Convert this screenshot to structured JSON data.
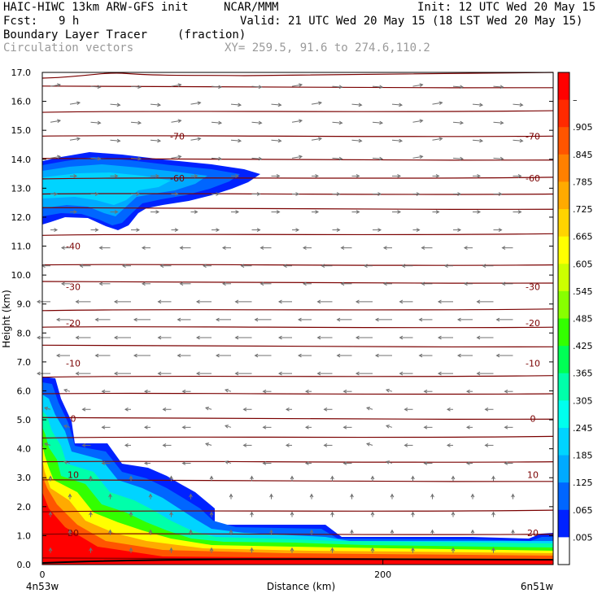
{
  "header": {
    "model": "HAIC-HIWC 13km ARW-GFS init",
    "org": "NCAR/MMM",
    "init": "Init: 12 UTC Wed 20 May 15",
    "fcst_label": "Fcst:",
    "fcst_value": "9 h",
    "valid": "Valid: 21 UTC Wed 20 May 15 (18 LST Wed 20 May 15)",
    "field1": "Boundary Layer Tracer",
    "field1_units": "(fraction)",
    "field2": "Circulation vectors",
    "xy": "XY= 259.5, 91.6 to 274.6,110.2"
  },
  "chart_data": {
    "type": "heatmap",
    "title": "Boundary Layer Tracer (fraction)",
    "xlabel": "Distance (km)",
    "ylabel": "Height (km)",
    "xlim": [
      0,
      300
    ],
    "ylim": [
      0,
      17
    ],
    "x_ticks": [
      {
        "value": 0,
        "label": "0"
      },
      {
        "value": 200,
        "label": "200"
      }
    ],
    "x_end_labels": {
      "left": "4n53w",
      "right": "6n51w"
    },
    "y_ticks": [
      "0.0",
      "1.0",
      "2.0",
      "3.0",
      "4.0",
      "5.0",
      "6.0",
      "7.0",
      "8.0",
      "9.0",
      "10.0",
      "11.0",
      "12.0",
      "13.0",
      "14.0",
      "15.0",
      "16.0",
      "17.0"
    ],
    "colorbar": {
      "labels": [
        "–",
        ".905",
        ".845",
        ".785",
        ".725",
        ".665",
        ".605",
        ".545",
        ".485",
        ".425",
        ".365",
        ".305",
        ".245",
        ".185",
        ".125",
        ".065",
        ".005"
      ],
      "colors": [
        "#ff0000",
        "#ff2a00",
        "#ff5500",
        "#ff8000",
        "#ffaa00",
        "#ffd400",
        "#ffff00",
        "#ccff00",
        "#88ff00",
        "#33ff00",
        "#00ff55",
        "#00ffaa",
        "#00ffee",
        "#00d4ff",
        "#00aaff",
        "#0066ff",
        "#0022ff",
        "#ffffff"
      ]
    },
    "contour_color": "#7a0000",
    "isotherms": [
      {
        "label": "-70",
        "height": 14.8,
        "positions": [
          "left-center",
          "right"
        ]
      },
      {
        "label": "-60",
        "height": 13.35,
        "positions": [
          "left-center",
          "right"
        ]
      },
      {
        "label": "-40",
        "height": 11.0,
        "positions": [
          "left"
        ]
      },
      {
        "label": "-30",
        "height": 9.6,
        "positions": [
          "left",
          "right"
        ]
      },
      {
        "label": "-20",
        "height": 8.35,
        "positions": [
          "left",
          "right"
        ]
      },
      {
        "label": "-10",
        "height": 6.95,
        "positions": [
          "left",
          "right"
        ]
      },
      {
        "label": "0",
        "height": 5.05,
        "positions": [
          "left",
          "right"
        ]
      },
      {
        "label": "10",
        "height": 3.1,
        "positions": [
          "left",
          "right"
        ]
      },
      {
        "label": "20",
        "height": 1.1,
        "positions": [
          "left",
          "right"
        ]
      }
    ],
    "tracer_regions": [
      {
        "name": "upper-plume",
        "x_range": [
          0,
          136
        ],
        "z_range": [
          11.7,
          14.2
        ],
        "max_fraction": 0.125
      },
      {
        "name": "boundary-layer",
        "x_range": [
          0,
          320
        ],
        "z_range": [
          0,
          6.5
        ],
        "max_fraction": 1.0
      }
    ]
  }
}
